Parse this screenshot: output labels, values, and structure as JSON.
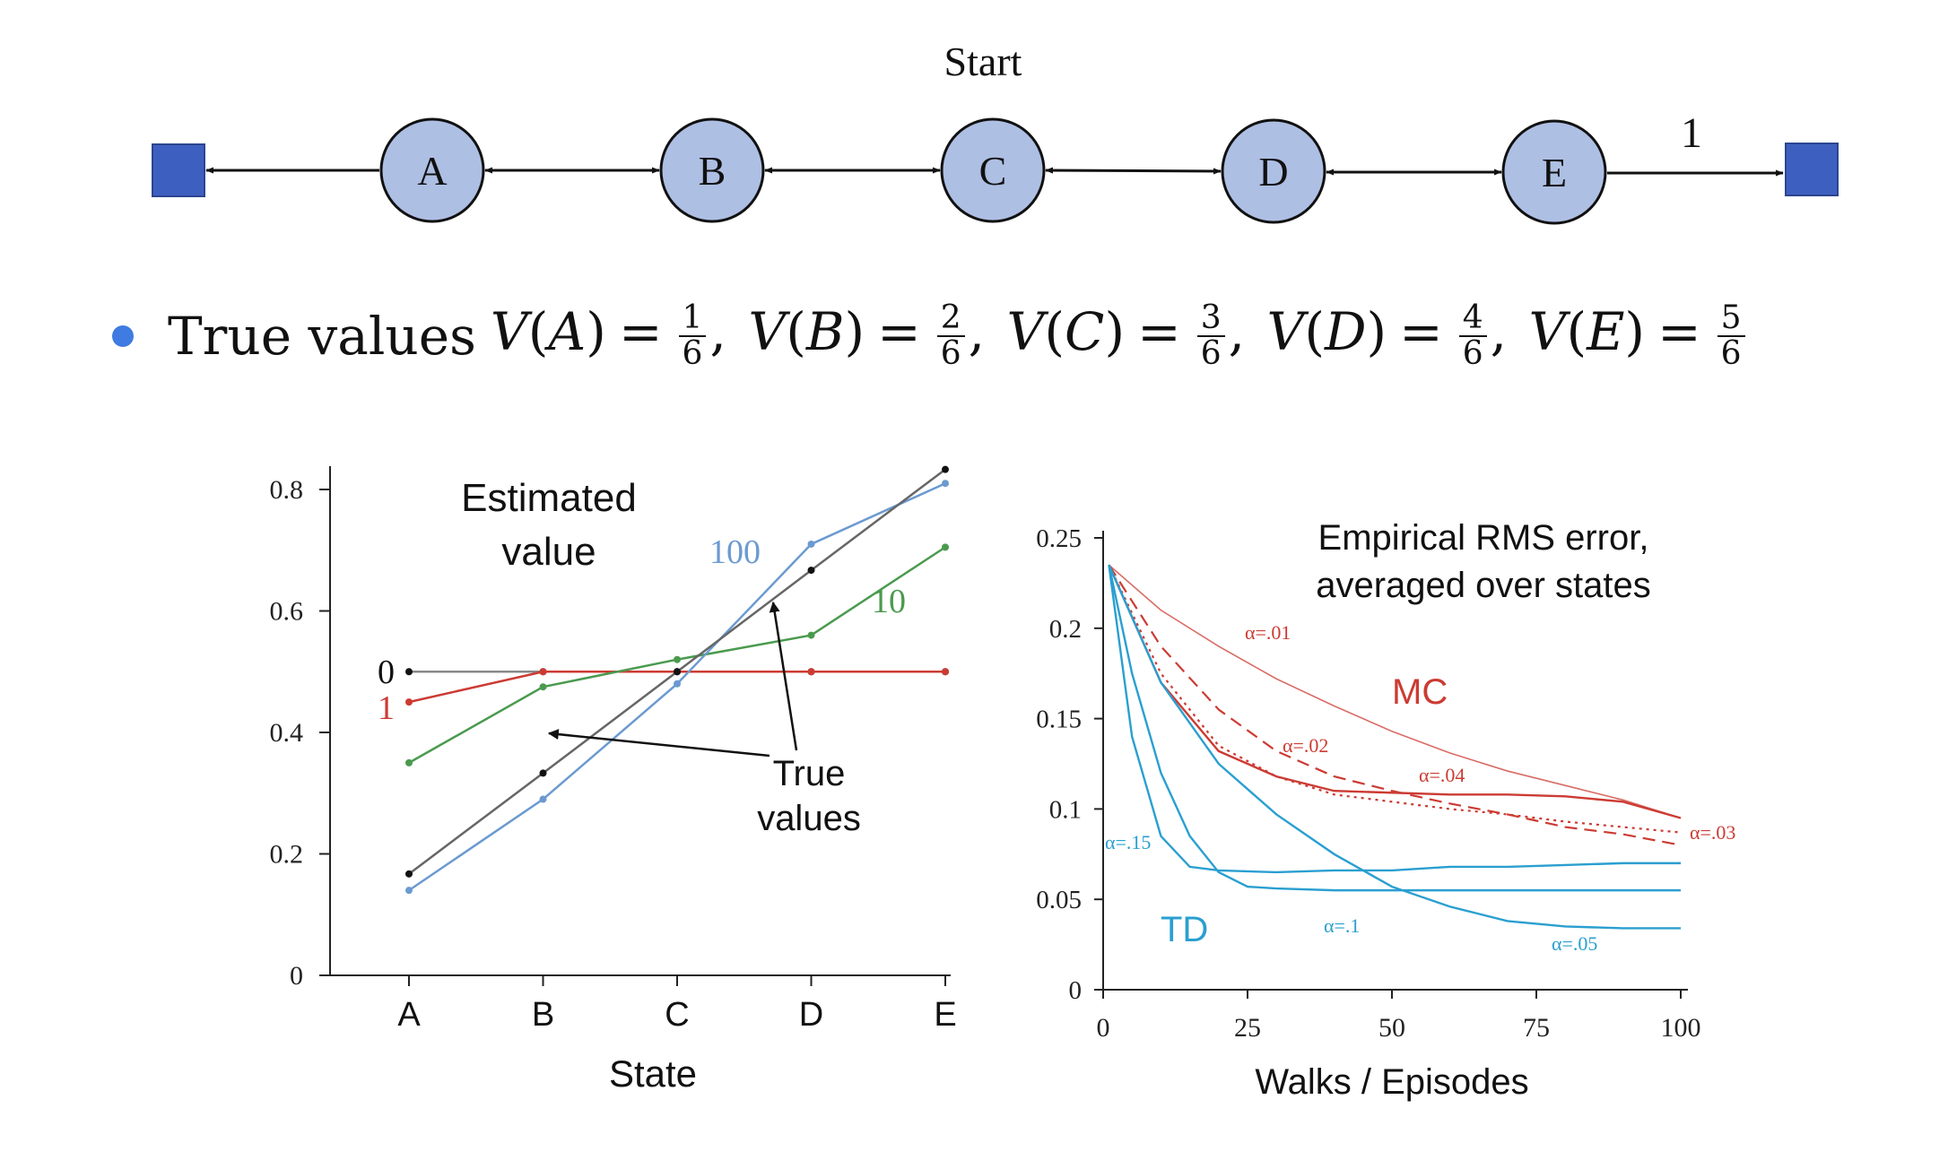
{
  "diagram": {
    "start_label": "Start",
    "reward_label": "1",
    "states": [
      "A",
      "B",
      "C",
      "D",
      "E"
    ],
    "colors": {
      "node_fill": "#aebfe4",
      "terminal_fill": "#3d5fbf",
      "edge": "#111111"
    }
  },
  "bullet": {
    "prefix": "True values",
    "values": [
      {
        "state": "A",
        "num": "1",
        "den": "6"
      },
      {
        "state": "B",
        "num": "2",
        "den": "6"
      },
      {
        "state": "C",
        "num": "3",
        "den": "6"
      },
      {
        "state": "D",
        "num": "4",
        "den": "6"
      },
      {
        "state": "E",
        "num": "5",
        "den": "6"
      }
    ]
  },
  "chart_data": [
    {
      "type": "line",
      "title": "Estimated value",
      "xlabel": "State",
      "ylabel": "",
      "categories": [
        "A",
        "B",
        "C",
        "D",
        "E"
      ],
      "ylim": [
        0,
        0.85
      ],
      "yticks": [
        0,
        0.2,
        0.4,
        0.6,
        0.8
      ],
      "ytick_labels": [
        "0",
        "0.2",
        "0.4",
        "0.6",
        "0.8"
      ],
      "series": [
        {
          "name": "0",
          "color": "#888888",
          "marker": "#111111",
          "values": [
            0.5,
            0.5,
            0.5,
            0.5,
            0.5
          ]
        },
        {
          "name": "1",
          "color": "#cc3b33",
          "marker": "#cc3b33",
          "values": [
            0.45,
            0.5,
            0.5,
            0.5,
            0.5
          ]
        },
        {
          "name": "10",
          "color": "#4a9a4e",
          "marker": "#4a9a4e",
          "values": [
            0.35,
            0.475,
            0.52,
            0.56,
            0.705
          ]
        },
        {
          "name": "100",
          "color": "#6b9ad0",
          "marker": "#6b9ad0",
          "values": [
            0.14,
            0.29,
            0.48,
            0.71,
            0.81
          ]
        },
        {
          "name": "",
          "color": "#666666",
          "marker": "#111111",
          "values": [
            0.167,
            0.333,
            0.5,
            0.667,
            0.833
          ]
        }
      ],
      "annotation": "True values"
    },
    {
      "type": "line",
      "title": "Empirical RMS error, averaged over states",
      "xlabel": "Walks / Episodes",
      "ylabel": "",
      "xlim": [
        0,
        100
      ],
      "ylim": [
        0,
        0.25
      ],
      "xticks": [
        0,
        25,
        50,
        75,
        100
      ],
      "xtick_labels": [
        "0",
        "25",
        "50",
        "75",
        "100"
      ],
      "yticks": [
        0,
        0.05,
        0.1,
        0.15,
        0.2,
        0.25
      ],
      "ytick_labels": [
        "0",
        "0.05",
        "0.1",
        "0.15",
        "0.2",
        "0.25"
      ],
      "group_labels": {
        "mc": "MC",
        "td": "TD"
      },
      "colors": {
        "mc": "#cc3b33",
        "td": "#2a9fd0"
      },
      "series": [
        {
          "name": "α=.01",
          "group": "mc",
          "style": "solid-thin",
          "x": [
            1,
            10,
            20,
            30,
            40,
            50,
            60,
            70,
            80,
            90,
            100
          ],
          "y": [
            0.235,
            0.21,
            0.19,
            0.172,
            0.157,
            0.143,
            0.131,
            0.121,
            0.113,
            0.105,
            0.095
          ]
        },
        {
          "name": "α=.02",
          "group": "mc",
          "style": "dashed",
          "x": [
            1,
            10,
            20,
            30,
            40,
            50,
            60,
            70,
            80,
            90,
            100
          ],
          "y": [
            0.235,
            0.19,
            0.155,
            0.132,
            0.118,
            0.11,
            0.103,
            0.097,
            0.09,
            0.086,
            0.08
          ]
        },
        {
          "name": "α=.03",
          "group": "mc",
          "style": "dotted",
          "x": [
            1,
            10,
            20,
            30,
            40,
            50,
            60,
            70,
            80,
            90,
            100
          ],
          "y": [
            0.235,
            0.175,
            0.135,
            0.118,
            0.108,
            0.104,
            0.1,
            0.097,
            0.093,
            0.09,
            0.087
          ]
        },
        {
          "name": "α=.04",
          "group": "mc",
          "style": "solid",
          "x": [
            1,
            10,
            20,
            30,
            40,
            50,
            60,
            70,
            80,
            90,
            100
          ],
          "y": [
            0.235,
            0.17,
            0.132,
            0.118,
            0.11,
            0.109,
            0.108,
            0.108,
            0.107,
            0.104,
            0.095
          ]
        },
        {
          "name": "α=.15",
          "group": "td",
          "style": "solid",
          "x": [
            1,
            5,
            10,
            15,
            20,
            30,
            40,
            50,
            60,
            70,
            80,
            90,
            100
          ],
          "y": [
            0.235,
            0.14,
            0.085,
            0.068,
            0.066,
            0.065,
            0.066,
            0.066,
            0.068,
            0.068,
            0.069,
            0.07,
            0.07
          ]
        },
        {
          "name": "α=.1",
          "group": "td",
          "style": "solid",
          "x": [
            1,
            5,
            10,
            15,
            20,
            25,
            30,
            40,
            50,
            60,
            70,
            80,
            90,
            100
          ],
          "y": [
            0.235,
            0.175,
            0.12,
            0.085,
            0.065,
            0.057,
            0.056,
            0.055,
            0.055,
            0.055,
            0.055,
            0.055,
            0.055,
            0.055
          ]
        },
        {
          "name": "α=.05",
          "group": "td",
          "style": "solid",
          "x": [
            1,
            10,
            20,
            30,
            40,
            50,
            60,
            70,
            80,
            90,
            100
          ],
          "y": [
            0.235,
            0.17,
            0.125,
            0.097,
            0.075,
            0.057,
            0.046,
            0.038,
            0.035,
            0.034,
            0.034
          ]
        }
      ]
    }
  ]
}
